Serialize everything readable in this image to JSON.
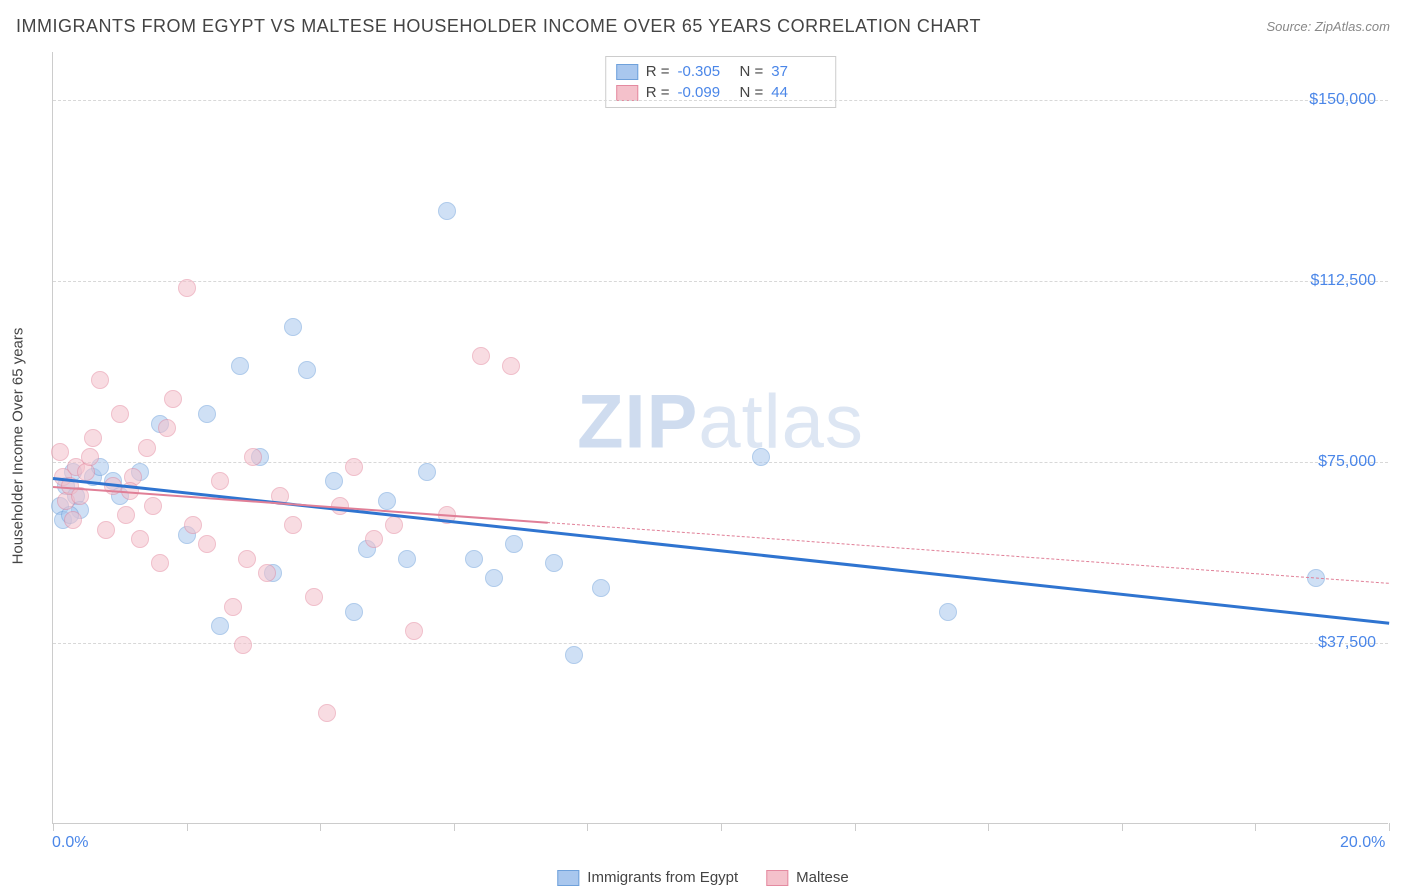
{
  "header": {
    "title": "IMMIGRANTS FROM EGYPT VS MALTESE HOUSEHOLDER INCOME OVER 65 YEARS CORRELATION CHART",
    "source_prefix": "Source: ",
    "source": "ZipAtlas.com"
  },
  "watermark": {
    "zip": "ZIP",
    "atlas": "atlas"
  },
  "chart": {
    "type": "scatter",
    "background_color": "#ffffff",
    "grid_color": "#d8d8d8",
    "axis_color": "#cccccc",
    "text_color": "#444444",
    "accent_color": "#4a86e8",
    "xlim": [
      0,
      20
    ],
    "ylim": [
      0,
      160000
    ],
    "ytick_values": [
      37500,
      75000,
      112500,
      150000
    ],
    "ytick_labels": [
      "$37,500",
      "$75,000",
      "$112,500",
      "$150,000"
    ],
    "xtick_values": [
      0,
      2,
      4,
      6,
      8,
      10,
      12,
      14,
      16,
      18,
      20
    ],
    "xaxis_min_label": "0.0%",
    "xaxis_max_label": "20.0%",
    "yaxis_title": "Householder Income Over 65 years",
    "point_radius": 9,
    "point_opacity": 0.55,
    "label_fontsize": 16,
    "axis_title_fontsize": 15
  },
  "series": [
    {
      "name": "Immigrants from Egypt",
      "color_fill": "#a9c7ee",
      "color_stroke": "#6fa1db",
      "r": "-0.305",
      "n": "37",
      "trend": {
        "x1": 0,
        "y1": 72000,
        "x2": 20,
        "y2": 42000,
        "color": "#2f74d0",
        "width": 2.5,
        "solid_until_x": 20
      },
      "points": [
        [
          0.1,
          66000
        ],
        [
          0.15,
          63000
        ],
        [
          0.2,
          70000
        ],
        [
          0.3,
          73000
        ],
        [
          0.35,
          68000
        ],
        [
          0.4,
          65000
        ],
        [
          0.6,
          72000
        ],
        [
          0.7,
          74000
        ],
        [
          0.9,
          71000
        ],
        [
          1.0,
          68000
        ],
        [
          1.3,
          73000
        ],
        [
          1.6,
          83000
        ],
        [
          2.0,
          60000
        ],
        [
          2.3,
          85000
        ],
        [
          2.5,
          41000
        ],
        [
          2.8,
          95000
        ],
        [
          3.1,
          76000
        ],
        [
          3.3,
          52000
        ],
        [
          3.6,
          103000
        ],
        [
          3.8,
          94000
        ],
        [
          4.2,
          71000
        ],
        [
          4.5,
          44000
        ],
        [
          4.7,
          57000
        ],
        [
          5.0,
          67000
        ],
        [
          5.3,
          55000
        ],
        [
          5.6,
          73000
        ],
        [
          5.9,
          127000
        ],
        [
          6.3,
          55000
        ],
        [
          6.6,
          51000
        ],
        [
          6.9,
          58000
        ],
        [
          7.5,
          54000
        ],
        [
          7.8,
          35000
        ],
        [
          8.2,
          49000
        ],
        [
          10.6,
          76000
        ],
        [
          13.4,
          44000
        ],
        [
          18.9,
          51000
        ],
        [
          0.25,
          64000
        ]
      ]
    },
    {
      "name": "Maltese",
      "color_fill": "#f4c1cb",
      "color_stroke": "#e48aa0",
      "r": "-0.099",
      "n": "44",
      "trend": {
        "x1": 0,
        "y1": 70000,
        "x2": 20,
        "y2": 50000,
        "color": "#e07f97",
        "width": 2,
        "solid_until_x": 7.4
      },
      "points": [
        [
          0.1,
          77000
        ],
        [
          0.15,
          72000
        ],
        [
          0.2,
          67000
        ],
        [
          0.25,
          70000
        ],
        [
          0.3,
          63000
        ],
        [
          0.35,
          74000
        ],
        [
          0.4,
          68000
        ],
        [
          0.5,
          73000
        ],
        [
          0.55,
          76000
        ],
        [
          0.7,
          92000
        ],
        [
          0.8,
          61000
        ],
        [
          0.9,
          70000
        ],
        [
          1.0,
          85000
        ],
        [
          1.1,
          64000
        ],
        [
          1.2,
          72000
        ],
        [
          1.3,
          59000
        ],
        [
          1.4,
          78000
        ],
        [
          1.5,
          66000
        ],
        [
          1.6,
          54000
        ],
        [
          1.8,
          88000
        ],
        [
          2.0,
          111000
        ],
        [
          2.1,
          62000
        ],
        [
          2.3,
          58000
        ],
        [
          2.5,
          71000
        ],
        [
          2.7,
          45000
        ],
        [
          2.85,
          37000
        ],
        [
          3.0,
          76000
        ],
        [
          3.2,
          52000
        ],
        [
          3.4,
          68000
        ],
        [
          3.6,
          62000
        ],
        [
          3.9,
          47000
        ],
        [
          4.1,
          23000
        ],
        [
          4.3,
          66000
        ],
        [
          4.5,
          74000
        ],
        [
          4.8,
          59000
        ],
        [
          5.1,
          62000
        ],
        [
          5.4,
          40000
        ],
        [
          5.9,
          64000
        ],
        [
          6.4,
          97000
        ],
        [
          6.85,
          95000
        ],
        [
          1.7,
          82000
        ],
        [
          0.6,
          80000
        ],
        [
          2.9,
          55000
        ],
        [
          1.15,
          69000
        ]
      ]
    }
  ],
  "legend_top": {
    "r_label": "R =",
    "n_label": "N ="
  },
  "legend_bottom": {
    "items": [
      "Immigrants from Egypt",
      "Maltese"
    ]
  }
}
